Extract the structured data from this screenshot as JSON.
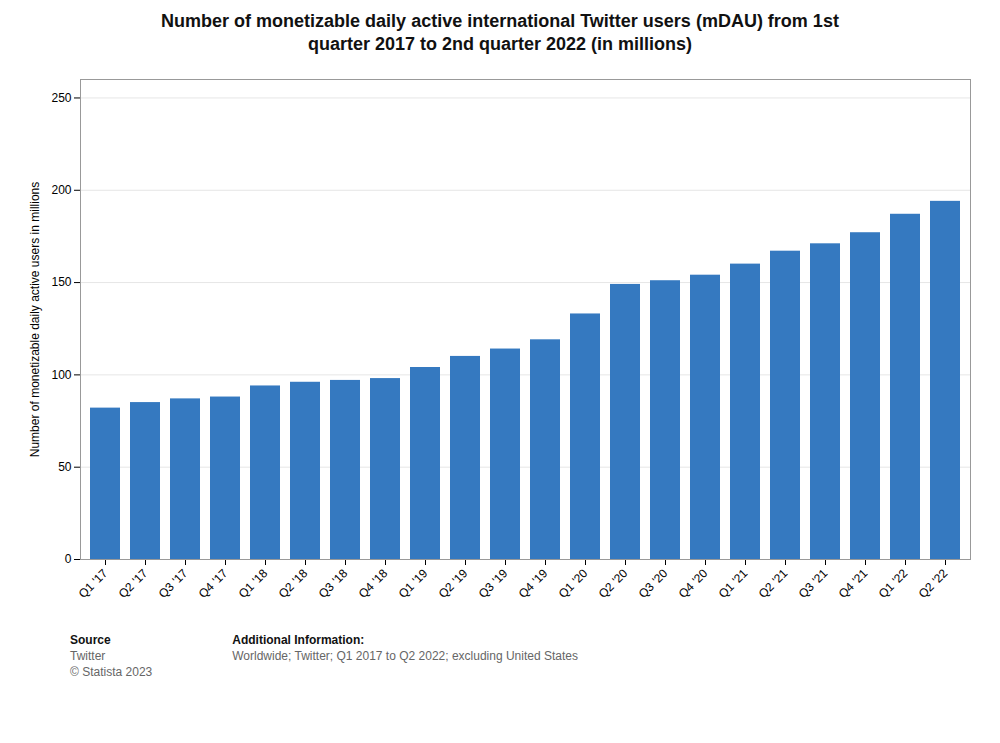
{
  "chart_data": {
    "type": "bar",
    "title": "Number of monetizable daily active international Twitter users (mDAU) from 1st\nquarter 2017 to 2nd quarter 2022 (in millions)",
    "ylabel": "Number of monetizable daily active users in millions",
    "categories": [
      "Q1 '17",
      "Q2 '17",
      "Q3 '17",
      "Q4 '17",
      "Q1 '18",
      "Q2 '18",
      "Q3 '18",
      "Q4 '18",
      "Q1 '19",
      "Q2 '19",
      "Q3 '19",
      "Q4 '19",
      "Q1 '20",
      "Q2 '20",
      "Q3 '20",
      "Q4 '20",
      "Q1 '21",
      "Q2 '21",
      "Q3 '21",
      "Q4 '21",
      "Q1 '22",
      "Q2 '22"
    ],
    "values": [
      82,
      85,
      87,
      88,
      94,
      96,
      97,
      98,
      104,
      110,
      114,
      119,
      133,
      149,
      151,
      154,
      160,
      167,
      171,
      177,
      187,
      194
    ],
    "color": "#3579c0",
    "ylim": [
      0,
      260
    ],
    "yticks": [
      0,
      50,
      100,
      150,
      200,
      250
    ],
    "grid": true,
    "annotations": [
      {
        "label": "Source",
        "text": "Twitter\n© Statista 2023"
      },
      {
        "label": "Additional Information:",
        "text": "Worldwide; Twitter; Q1 2017 to Q2 2022; excluding United States"
      }
    ]
  }
}
